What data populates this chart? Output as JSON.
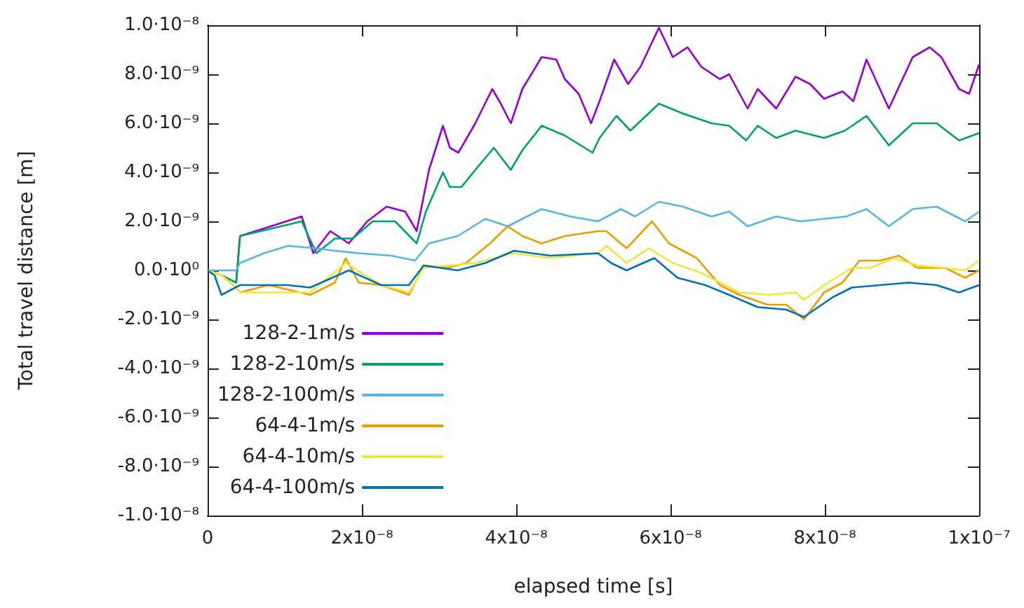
{
  "chart_data": {
    "type": "line",
    "xlabel": "elapsed time [s]",
    "ylabel": "Total travel distance [m]",
    "xlim": [
      0,
      1e-07
    ],
    "ylim": [
      -1e-08,
      1e-08
    ],
    "xticks": [
      {
        "value": 0,
        "label": "0"
      },
      {
        "value": 2e-08,
        "label": "2x10⁻⁸"
      },
      {
        "value": 4e-08,
        "label": "4x10⁻⁸"
      },
      {
        "value": 6e-08,
        "label": "6x10⁻⁸"
      },
      {
        "value": 8e-08,
        "label": "8x10⁻⁸"
      },
      {
        "value": 1e-07,
        "label": "1x10⁻⁷"
      }
    ],
    "yticks": [
      {
        "value": -1e-08,
        "label": "-1.0·10⁻⁸"
      },
      {
        "value": -8e-09,
        "label": "-8.0·10⁻⁹"
      },
      {
        "value": -6e-09,
        "label": "-6.0·10⁻⁹"
      },
      {
        "value": -4e-09,
        "label": "-4.0·10⁻⁹"
      },
      {
        "value": -2e-09,
        "label": "-2.0·10⁻⁹"
      },
      {
        "value": 0,
        "label": "0.0·10⁰"
      },
      {
        "value": 2e-09,
        "label": "2.0·10⁻⁹"
      },
      {
        "value": 4e-09,
        "label": "4.0·10⁻⁹"
      },
      {
        "value": 6e-09,
        "label": "6.0·10⁻⁹"
      },
      {
        "value": 8e-09,
        "label": "8.0·10⁻⁹"
      },
      {
        "value": 1e-08,
        "label": "1.0·10⁻⁸"
      }
    ],
    "legend": "bottom left",
    "series": [
      {
        "name": "128-2-1m/s",
        "color": "#9400d3",
        "x": [
          3.7e-09,
          4.2e-09,
          1.22e-08,
          1.37e-08,
          1.59e-08,
          1.83e-08,
          2.07e-08,
          2.32e-08,
          2.56e-08,
          2.71e-08,
          2.87e-08,
          3.05e-08,
          3.14e-08,
          3.25e-08,
          3.47e-08,
          3.69e-08,
          3.8e-08,
          3.93e-08,
          4.08e-08,
          4.33e-08,
          4.52e-08,
          4.63e-08,
          4.81e-08,
          4.97e-08,
          5.08e-08,
          5.27e-08,
          5.45e-08,
          5.61e-08,
          5.85e-08,
          6.03e-08,
          6.22e-08,
          6.4e-08,
          6.64e-08,
          6.76e-08,
          7e-08,
          7.13e-08,
          7.37e-08,
          7.62e-08,
          7.81e-08,
          7.99e-08,
          8.23e-08,
          8.37e-08,
          8.54e-08,
          8.83e-08,
          9.14e-08,
          9.36e-08,
          9.51e-08,
          9.74e-08,
          9.87e-08,
          1e-07
        ],
        "values": [
          -5e-10,
          1.4e-09,
          2.2e-09,
          7e-10,
          1.6e-09,
          1.1e-09,
          2e-09,
          2.6e-09,
          2.4e-09,
          1.6e-09,
          4.1e-09,
          5.9e-09,
          5e-09,
          4.8e-09,
          6e-09,
          7.4e-09,
          6.8e-09,
          6e-09,
          7.4e-09,
          8.7e-09,
          8.6e-09,
          7.8e-09,
          7.2e-09,
          6e-09,
          6.9e-09,
          8.6e-09,
          7.6e-09,
          8.3e-09,
          9.9e-09,
          8.7e-09,
          9.1e-09,
          8.3e-09,
          7.8e-09,
          8e-09,
          6.6e-09,
          7.4e-09,
          6.6e-09,
          7.9e-09,
          7.6e-09,
          7e-09,
          7.3e-09,
          6.9e-09,
          8.6e-09,
          6.6e-09,
          8.7e-09,
          9.1e-09,
          8.7e-09,
          7.4e-09,
          7.2e-09,
          8.4e-09
        ]
      },
      {
        "name": "128-2-10m/s",
        "color": "#009e73",
        "x": [
          0,
          1.8e-09,
          3.7e-09,
          4.2e-09,
          1.22e-08,
          1.41e-08,
          1.65e-08,
          1.88e-08,
          2.14e-08,
          2.43e-08,
          2.71e-08,
          2.83e-08,
          3.05e-08,
          3.14e-08,
          3.29e-08,
          3.47e-08,
          3.71e-08,
          3.93e-08,
          4.08e-08,
          4.33e-08,
          4.63e-08,
          4.99e-08,
          5.08e-08,
          5.3e-08,
          5.48e-08,
          5.85e-08,
          6.16e-08,
          6.53e-08,
          6.76e-08,
          6.98e-08,
          7.13e-08,
          7.37e-08,
          7.62e-08,
          7.99e-08,
          8.26e-08,
          8.54e-08,
          8.83e-08,
          9.14e-08,
          9.45e-08,
          9.74e-08,
          1e-07
        ],
        "values": [
          0,
          -2e-10,
          -5e-10,
          1.4e-09,
          2e-09,
          7e-10,
          1.3e-09,
          1.3e-09,
          2e-09,
          2e-09,
          1.1e-09,
          2.4e-09,
          4e-09,
          3.4e-09,
          3.4e-09,
          4.1e-09,
          5e-09,
          4.1e-09,
          4.9e-09,
          5.9e-09,
          5.5e-09,
          4.8e-09,
          5.4e-09,
          6.3e-09,
          5.7e-09,
          6.8e-09,
          6.4e-09,
          6e-09,
          5.9e-09,
          5.3e-09,
          5.9e-09,
          5.4e-09,
          5.7e-09,
          5.4e-09,
          5.7e-09,
          6.3e-09,
          5.1e-09,
          6e-09,
          6e-09,
          5.3e-09,
          5.6e-09
        ]
      },
      {
        "name": "128-2-100m/s",
        "color": "#56b4e9",
        "x": [
          0,
          1.8e-09,
          3.7e-09,
          4.2e-09,
          7.3e-09,
          1.04e-08,
          1.41e-08,
          1.65e-08,
          1.96e-08,
          2.38e-08,
          2.69e-08,
          2.87e-08,
          3.24e-08,
          3.6e-08,
          3.89e-08,
          4.33e-08,
          4.7e-08,
          5.06e-08,
          5.36e-08,
          5.54e-08,
          5.85e-08,
          6.16e-08,
          6.53e-08,
          6.76e-08,
          7e-08,
          7.37e-08,
          7.68e-08,
          7.99e-08,
          8.28e-08,
          8.54e-08,
          8.83e-08,
          9.14e-08,
          9.45e-08,
          9.82e-08,
          1e-07
        ],
        "values": [
          0,
          0,
          0,
          3e-10,
          7e-10,
          1e-09,
          9e-10,
          8e-10,
          7e-10,
          6e-10,
          4e-10,
          1.1e-09,
          1.4e-09,
          2.1e-09,
          1.8e-09,
          2.5e-09,
          2.2e-09,
          2e-09,
          2.5e-09,
          2.2e-09,
          2.8e-09,
          2.6e-09,
          2.2e-09,
          2.4e-09,
          1.8e-09,
          2.2e-09,
          2e-09,
          2.1e-09,
          2.2e-09,
          2.5e-09,
          1.8e-09,
          2.5e-09,
          2.6e-09,
          2e-09,
          2.4e-09
        ]
      },
      {
        "name": "64-4-1m/s",
        "color": "#e69f00",
        "x": [
          0,
          1.8e-09,
          3.7e-09,
          4.2e-09,
          7.9e-09,
          1.33e-08,
          1.65e-08,
          1.79e-08,
          1.96e-08,
          2.25e-08,
          2.61e-08,
          2.8e-08,
          3.11e-08,
          3.35e-08,
          3.66e-08,
          3.89e-08,
          4.08e-08,
          4.33e-08,
          4.63e-08,
          5.06e-08,
          5.17e-08,
          5.43e-08,
          5.76e-08,
          5.98e-08,
          6.34e-08,
          6.64e-08,
          6.89e-08,
          7.26e-08,
          7.5e-08,
          7.73e-08,
          7.99e-08,
          8.23e-08,
          8.45e-08,
          8.72e-08,
          8.96e-08,
          9.2e-08,
          9.56e-08,
          9.82e-08,
          1e-07
        ],
        "values": [
          0,
          -2e-10,
          -7e-10,
          -9e-10,
          -6e-10,
          -1e-09,
          -5e-10,
          5e-10,
          -5e-10,
          -6e-10,
          -1e-09,
          2e-10,
          1e-10,
          3e-10,
          1.1e-09,
          1.8e-09,
          1.4e-09,
          1.1e-09,
          1.4e-09,
          1.6e-09,
          1.6e-09,
          9e-10,
          2e-09,
          1.1e-09,
          5e-10,
          -6e-10,
          -1e-09,
          -1.4e-09,
          -1.4e-09,
          -2e-09,
          -9e-10,
          -5e-10,
          4e-10,
          4e-10,
          6e-10,
          1e-10,
          1e-10,
          -3e-10,
          0
        ]
      },
      {
        "name": "64-4-10m/s",
        "color": "#f0e442",
        "x": [
          0,
          1.8e-09,
          3.7e-09,
          4.2e-09,
          1.33e-08,
          1.79e-08,
          2.25e-08,
          2.61e-08,
          2.8e-08,
          3.47e-08,
          3.97e-08,
          4.44e-08,
          5.06e-08,
          5.17e-08,
          5.43e-08,
          5.72e-08,
          6.03e-08,
          6.4e-08,
          6.64e-08,
          6.89e-08,
          7.26e-08,
          7.62e-08,
          7.73e-08,
          7.99e-08,
          8.35e-08,
          8.59e-08,
          8.9e-08,
          9.2e-08,
          9.56e-08,
          9.82e-08,
          1e-07
        ],
        "values": [
          0,
          -2e-10,
          -7e-10,
          -9e-10,
          -9e-10,
          3e-10,
          -6e-10,
          -9e-10,
          1e-10,
          3e-10,
          7e-10,
          5e-10,
          7e-10,
          1e-09,
          3e-10,
          9e-10,
          3e-10,
          -1e-10,
          -5e-10,
          -9e-10,
          -1e-09,
          -9e-10,
          -1.2e-09,
          -6e-10,
          1e-10,
          1e-10,
          5e-10,
          2e-10,
          1e-10,
          0,
          4e-10
        ]
      },
      {
        "name": "64-4-100m/s",
        "color": "#0072b2",
        "x": [
          0,
          9e-10,
          1.8e-09,
          4.2e-09,
          1.04e-08,
          1.33e-08,
          1.83e-08,
          2.25e-08,
          2.61e-08,
          2.8e-08,
          3.24e-08,
          3.6e-08,
          3.97e-08,
          4.44e-08,
          5.06e-08,
          5.23e-08,
          5.43e-08,
          5.79e-08,
          6.09e-08,
          6.45e-08,
          6.76e-08,
          7.13e-08,
          7.5e-08,
          7.73e-08,
          8.1e-08,
          8.35e-08,
          8.72e-08,
          9.09e-08,
          9.45e-08,
          9.74e-08,
          1e-07
        ],
        "values": [
          0,
          -2e-10,
          -1e-09,
          -6e-10,
          -6e-10,
          -7e-10,
          0,
          -6e-10,
          -6e-10,
          2e-10,
          0,
          3e-10,
          8e-10,
          6e-10,
          7e-10,
          3e-10,
          0,
          5e-10,
          -3e-10,
          -6e-10,
          -1e-09,
          -1.5e-09,
          -1.6e-09,
          -1.9e-09,
          -1.1e-09,
          -7e-10,
          -6e-10,
          -5e-10,
          -6e-10,
          -9e-10,
          -6e-10
        ]
      }
    ]
  }
}
